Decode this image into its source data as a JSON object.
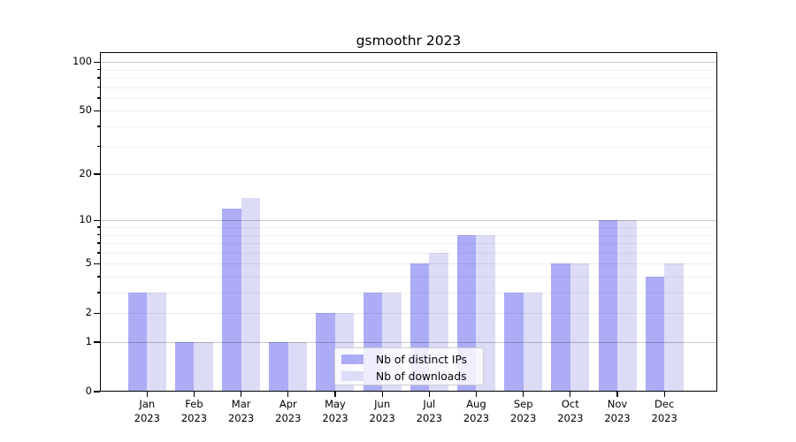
{
  "title": "gsmoothr 2023",
  "chart_data": {
    "type": "bar",
    "title": "gsmoothr 2023",
    "categories": [
      "Jan 2023",
      "Feb 2023",
      "Mar 2023",
      "Apr 2023",
      "May 2023",
      "Jun 2023",
      "Jul 2023",
      "Aug 2023",
      "Sep 2023",
      "Oct 2023",
      "Nov 2023",
      "Dec 2023"
    ],
    "series": [
      {
        "name": "Nb of distinct IPs",
        "color": "#acacf7",
        "values": [
          3,
          1,
          12,
          1,
          2,
          3,
          5,
          8,
          3,
          5,
          10,
          4
        ]
      },
      {
        "name": "Nb of downloads",
        "color": "#dcdcf7",
        "values": [
          3,
          1,
          14,
          1,
          2,
          3,
          6,
          8,
          3,
          5,
          10,
          5
        ]
      }
    ],
    "xlabel": "",
    "ylabel": "",
    "yscale": "log1p",
    "ylim": [
      0,
      115
    ],
    "y_major_ticks": [
      0,
      1,
      2,
      5,
      10,
      20,
      50,
      100
    ],
    "y_minor_ticks": [
      3,
      4,
      6,
      7,
      8,
      9,
      30,
      40,
      60,
      70,
      80,
      90
    ],
    "y_decade_lines": [
      1,
      10,
      100
    ],
    "grid": "on",
    "legend_position": "lower center"
  },
  "legend": {
    "items": [
      {
        "label": "Nb of distinct IPs",
        "color": "#acacf7"
      },
      {
        "label": "Nb of downloads",
        "color": "#dcdcf7"
      }
    ]
  }
}
